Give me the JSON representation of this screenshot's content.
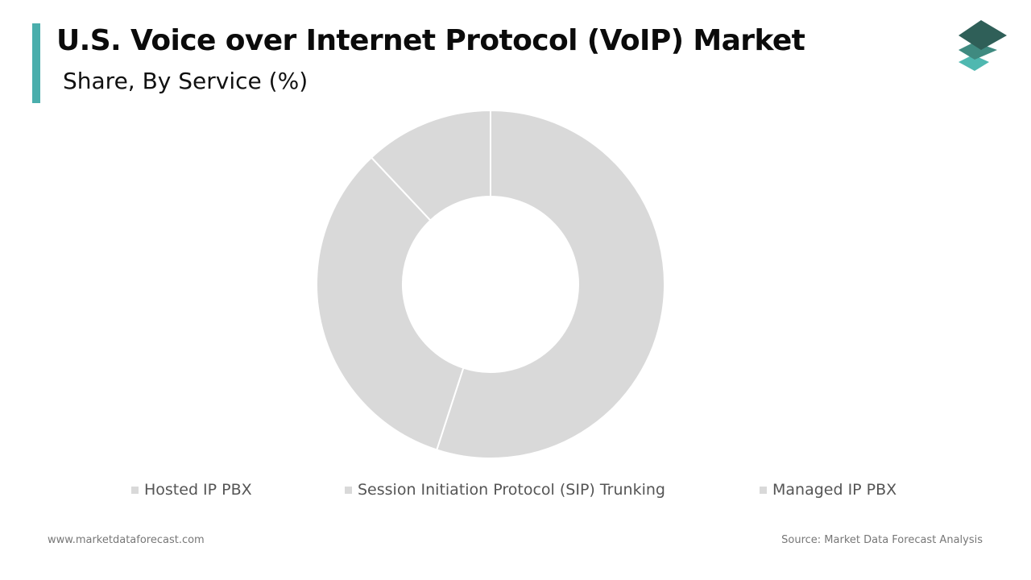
{
  "header": {
    "title": "U.S. Voice over Internet Protocol (VoIP) Market",
    "subtitle": "Share, By Service (%)",
    "accent_color": "#4aaeac"
  },
  "logo": {
    "icon": "stacked-layers-logo-icon",
    "colors": [
      "#2f5f58",
      "#3f8a80",
      "#4fb8b0"
    ]
  },
  "chart_data": {
    "type": "pie",
    "variant": "donut",
    "categories": [
      "Hosted IP PBX",
      "Session Initiation Protocol (SIP) Trunking",
      "Managed IP PBX"
    ],
    "values": [
      55,
      33,
      12
    ],
    "colors": [
      "#d9d9d9",
      "#d9d9d9",
      "#d9d9d9"
    ],
    "legend_placement": "bottom"
  },
  "footer": {
    "website": "www.marketdataforecast.com",
    "source": "Source: Market Data Forecast Analysis"
  }
}
